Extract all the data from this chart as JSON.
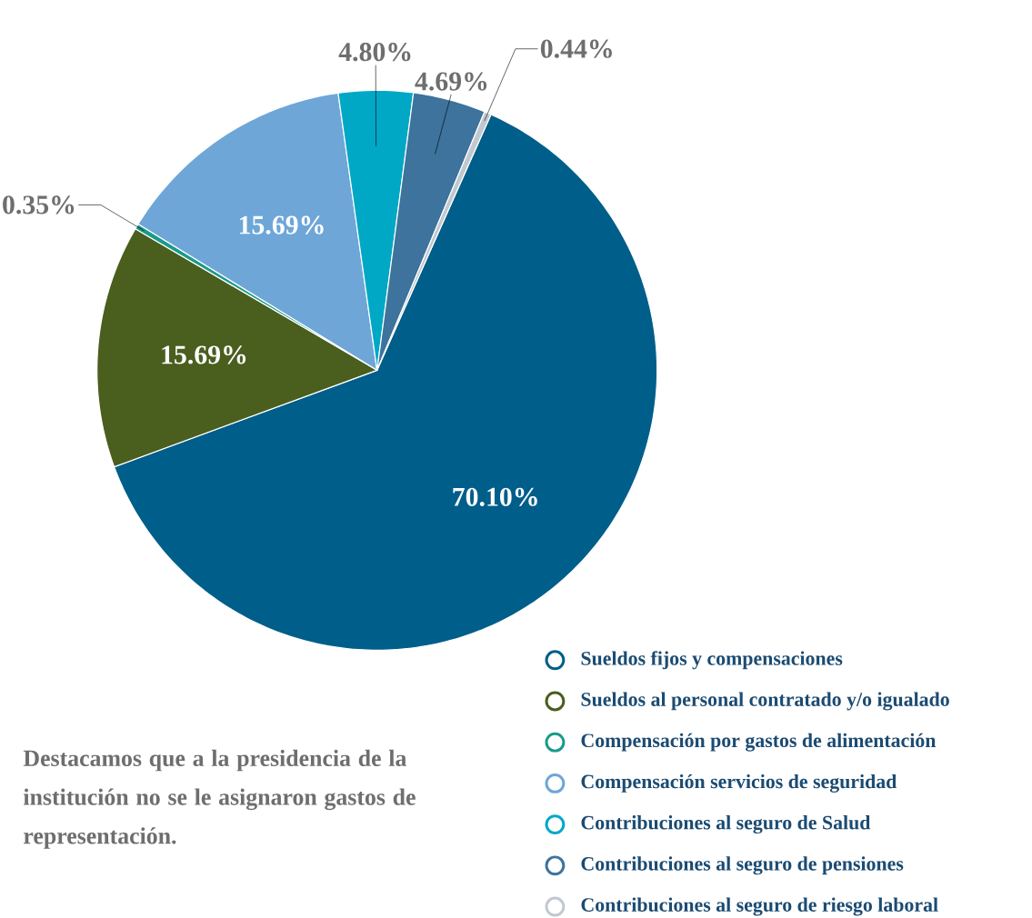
{
  "chart_data": {
    "type": "pie",
    "categories": [
      "Sueldos fijos y compensaciones",
      "Sueldos al personal contratado y/o igualado",
      "Compensación por gastos de alimentación",
      "Compensación servicios de seguridad",
      "Contribuciones al seguro de Salud",
      "Contribuciones al seguro de pensiones",
      "Contribuciones al seguro de riesgo laboral"
    ],
    "values": [
      70.1,
      15.69,
      0.35,
      15.69,
      4.8,
      4.69,
      0.44
    ],
    "value_labels": [
      "70.10%",
      "15.69%",
      "0.35%",
      "15.69%",
      "4.80%",
      "4.69%",
      "0.44%"
    ],
    "colors": [
      "#005e8a",
      "#4a5e1e",
      "#1a9a8a",
      "#6ea6d8",
      "#00a8c6",
      "#3d739c",
      "#c0c8d0"
    ],
    "legend": "bottom right",
    "annotations": [
      "Destacamos que a la presidencia de la institución no se le asignaron gastos de representación."
    ]
  }
}
